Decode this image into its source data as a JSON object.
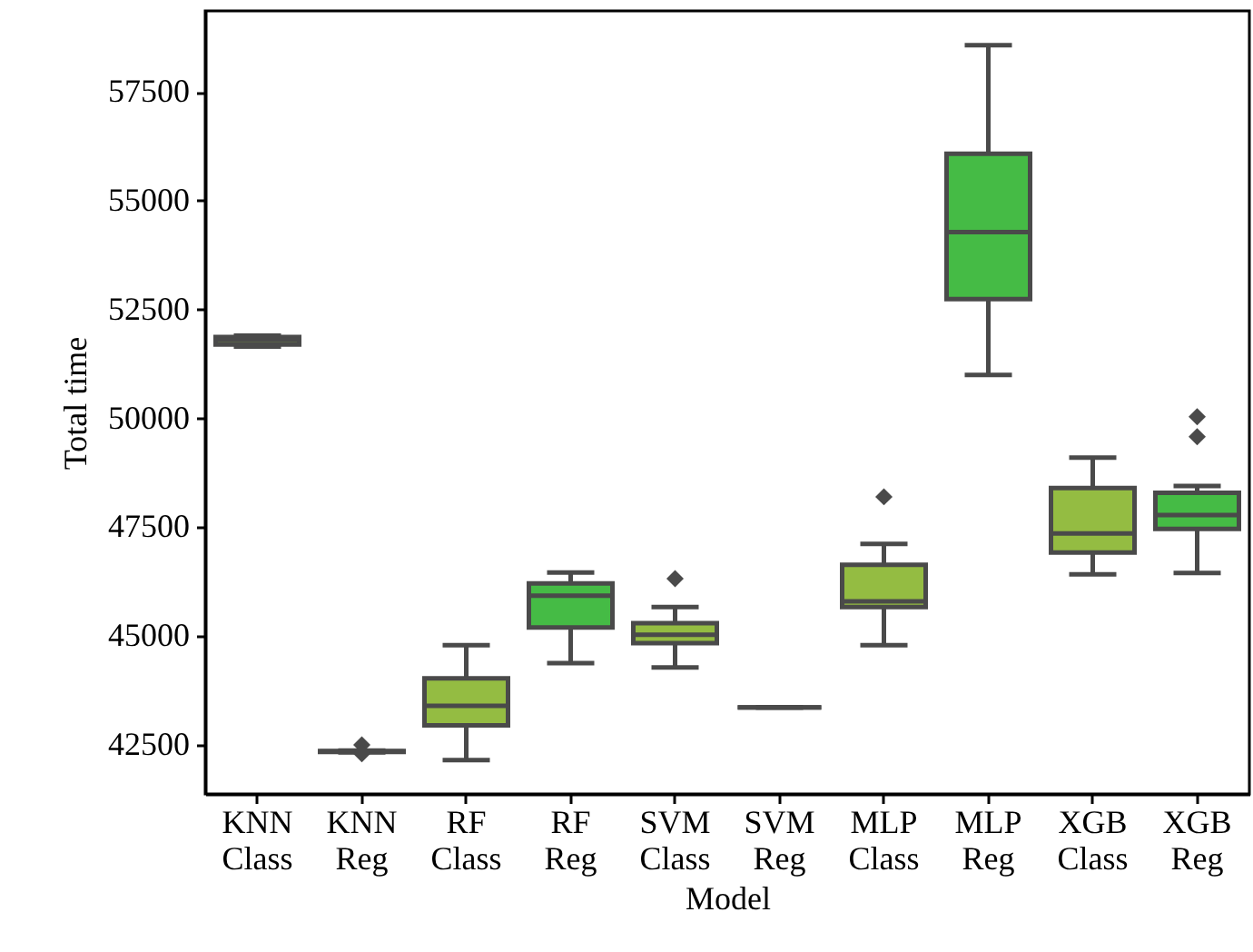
{
  "chart_data": {
    "type": "box",
    "xlabel": "Model",
    "ylabel": "Total time",
    "categories": [
      "KNN Class",
      "KNN Reg",
      "RF Class",
      "RF Reg",
      "SVM Class",
      "SVM Reg",
      "MLP Class",
      "MLP Reg",
      "XGB Class",
      "XGB Reg"
    ],
    "colors": [
      "#94bc42",
      "#45bb45",
      "#94bc42",
      "#45bb45",
      "#94bc42",
      "#4a4a4a",
      "#94bc42",
      "#45bb45",
      "#94bc42",
      "#45bb45"
    ],
    "boxes": [
      {
        "low": 51650,
        "q1": 51700,
        "median": 51800,
        "q3": 51870,
        "high": 51900
      },
      {
        "low": 42330,
        "q1": 42340,
        "median": 42350,
        "q3": 42360,
        "high": 42370,
        "outliers": [
          42500,
          42300
        ]
      },
      {
        "low": 42150,
        "q1": 42950,
        "median": 43400,
        "q3": 44030,
        "high": 44790
      },
      {
        "low": 44380,
        "q1": 45200,
        "median": 45930,
        "q3": 46210,
        "high": 46460
      },
      {
        "low": 44280,
        "q1": 44840,
        "median": 45030,
        "q3": 45300,
        "high": 45670,
        "outliers": [
          46320
        ]
      },
      {
        "low": 43360,
        "q1": 43360,
        "median": 43360,
        "q3": 43360,
        "high": 43360
      },
      {
        "low": 44790,
        "q1": 45670,
        "median": 45800,
        "q3": 46640,
        "high": 47120,
        "outliers": [
          48200
        ]
      },
      {
        "low": 51000,
        "q1": 52740,
        "median": 54280,
        "q3": 56080,
        "high": 58570
      },
      {
        "low": 46420,
        "q1": 46920,
        "median": 47360,
        "q3": 48400,
        "high": 49100
      },
      {
        "low": 46450,
        "q1": 47460,
        "median": 47780,
        "q3": 48290,
        "high": 48450,
        "outliers": [
          50040,
          49580
        ]
      }
    ],
    "ylim": [
      41375,
      59360
    ],
    "yticks": [
      42500,
      45000,
      47500,
      50000,
      52500,
      55000,
      57500
    ],
    "grid": false
  }
}
